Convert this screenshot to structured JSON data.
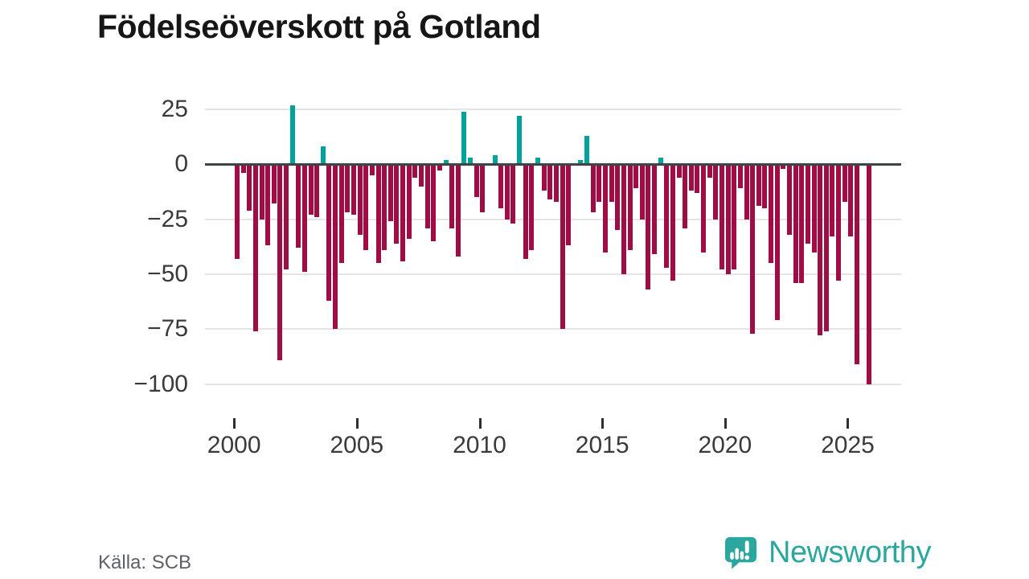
{
  "title": "Födelseöverskott på Gotland",
  "source": "Källa: SCB",
  "logo": {
    "text": "Newsworthy"
  },
  "colors": {
    "negative_bar": "#a00d46",
    "positive_bar": "#00a39b",
    "gridline": "#e5e5e5",
    "zero_line": "#3f4447",
    "axis_text": "#3a3a3a",
    "title_text": "#161616",
    "source_text": "#5f5f6b",
    "logo_teal": "#2ba7a0"
  },
  "chart_data": {
    "type": "bar",
    "title": "Födelseöverskott på Gotland",
    "period": "quarterly",
    "start_year": 2000,
    "values": [
      -43,
      -4,
      -21,
      -76,
      -25,
      -37,
      -18,
      -89,
      -48,
      27,
      -38,
      -49,
      -23,
      -24,
      8,
      -62,
      -75,
      -45,
      -22,
      -23,
      -32,
      -39,
      -5,
      -45,
      -39,
      -26,
      -36,
      -44,
      -34,
      -6,
      -10,
      -29,
      -35,
      -3,
      2,
      -29,
      -42,
      24,
      3,
      -15,
      -22,
      0,
      4,
      -20,
      -25,
      -27,
      22,
      -43,
      -39,
      3,
      -12,
      -16,
      -17,
      -75,
      -37,
      0,
      2,
      13,
      -22,
      -17,
      -40,
      -17,
      -30,
      -50,
      -39,
      -11,
      -25,
      -57,
      -41,
      3,
      -47,
      -53,
      -6,
      -29,
      -12,
      -13,
      -40,
      -6,
      -25,
      -48,
      -50,
      -48,
      -11,
      -25,
      -77,
      -19,
      -20,
      -45,
      -71,
      -2,
      -32,
      -54,
      -54,
      -36,
      -40,
      -78,
      -76,
      -33,
      -53,
      -17,
      -33,
      -91,
      0,
      -100
    ],
    "x_ticks": [
      2000,
      2005,
      2010,
      2015,
      2020,
      2025
    ],
    "y_ticks": [
      25,
      0,
      -25,
      -50,
      -75,
      -100
    ],
    "ylim": [
      -105,
      32
    ],
    "grid": true,
    "legend": false
  }
}
